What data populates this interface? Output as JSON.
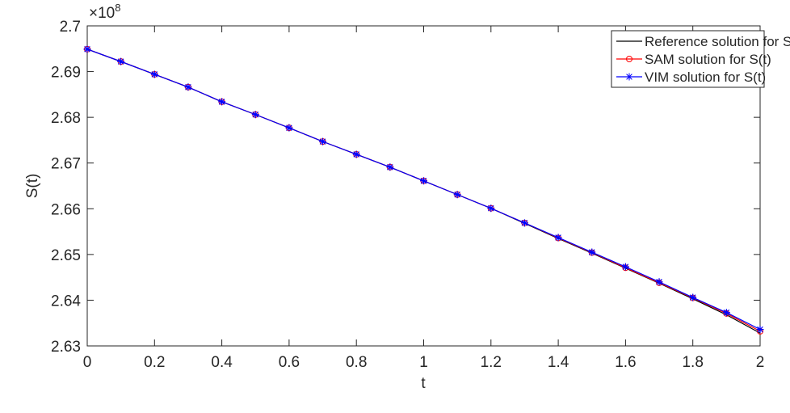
{
  "chart_data": {
    "type": "line",
    "x_label": "t",
    "y_label": "S(t)",
    "y_multiplier": {
      "base": "×10",
      "power": "8"
    },
    "x": [
      0,
      0.1,
      0.2,
      0.3,
      0.4,
      0.5,
      0.6,
      0.7,
      0.8,
      0.9,
      1,
      1.1,
      1.2,
      1.3,
      1.4,
      1.5,
      1.6,
      1.7,
      1.8,
      1.9,
      2
    ],
    "series": [
      {
        "name": "Reference solution for S(t)",
        "color": "#000000",
        "marker": "none",
        "values": [
          2.6949,
          2.6922,
          2.6894,
          2.6866,
          2.6834,
          2.6806,
          2.6777,
          2.6747,
          2.6719,
          2.6691,
          2.6661,
          2.6631,
          2.6601,
          2.6568,
          2.6535,
          2.6503,
          2.647,
          2.6437,
          2.6403,
          2.6368,
          2.6328
        ]
      },
      {
        "name": "SAM solution for S(t)",
        "color": "#ff0000",
        "marker": "circle",
        "values": [
          2.6949,
          2.6922,
          2.6894,
          2.6866,
          2.6834,
          2.6806,
          2.6777,
          2.6747,
          2.6719,
          2.6691,
          2.6661,
          2.6631,
          2.6601,
          2.6569,
          2.6536,
          2.6504,
          2.6471,
          2.6438,
          2.6405,
          2.6371,
          2.6332
        ]
      },
      {
        "name": "VIM solution for S(t)",
        "color": "#0000ff",
        "marker": "star",
        "values": [
          2.6949,
          2.6922,
          2.6894,
          2.6866,
          2.6834,
          2.6806,
          2.6777,
          2.6747,
          2.6719,
          2.6691,
          2.6661,
          2.6631,
          2.6601,
          2.6569,
          2.6537,
          2.6505,
          2.6473,
          2.644,
          2.6406,
          2.6373,
          2.6336
        ]
      }
    ],
    "xlim": [
      0,
      2
    ],
    "xticks": [
      0,
      0.2,
      0.4,
      0.6,
      0.8,
      1,
      1.2,
      1.4,
      1.6,
      1.8,
      2
    ],
    "ylim": [
      2.63,
      2.7
    ],
    "yticks": [
      2.63,
      2.64,
      2.65,
      2.66,
      2.67,
      2.68,
      2.69,
      2.7
    ],
    "grid": false,
    "legend": "top-right"
  }
}
